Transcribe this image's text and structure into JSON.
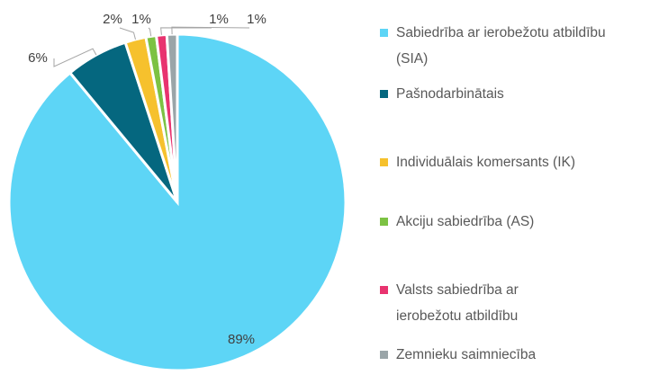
{
  "chart_data": {
    "type": "pie",
    "categories": [
      "Sabiedrība ar ierobežotu atbildību (SIA)",
      "Pašnodarbinātais",
      "Individuālais komersants (IK)",
      "Akciju sabiedrība (AS)",
      "Valsts sabiedrība ar ierobežotu atbildību",
      "Zemnieku saimniecība"
    ],
    "values": [
      89,
      6,
      2,
      1,
      1,
      1
    ],
    "value_labels": [
      "89%",
      "6%",
      "2%",
      "1%",
      "1%",
      "1%"
    ],
    "colors": [
      "#5dd5f6",
      "#05677f",
      "#f6c12d",
      "#7cc243",
      "#e8336f",
      "#9aa5a8"
    ],
    "legend": "right"
  }
}
